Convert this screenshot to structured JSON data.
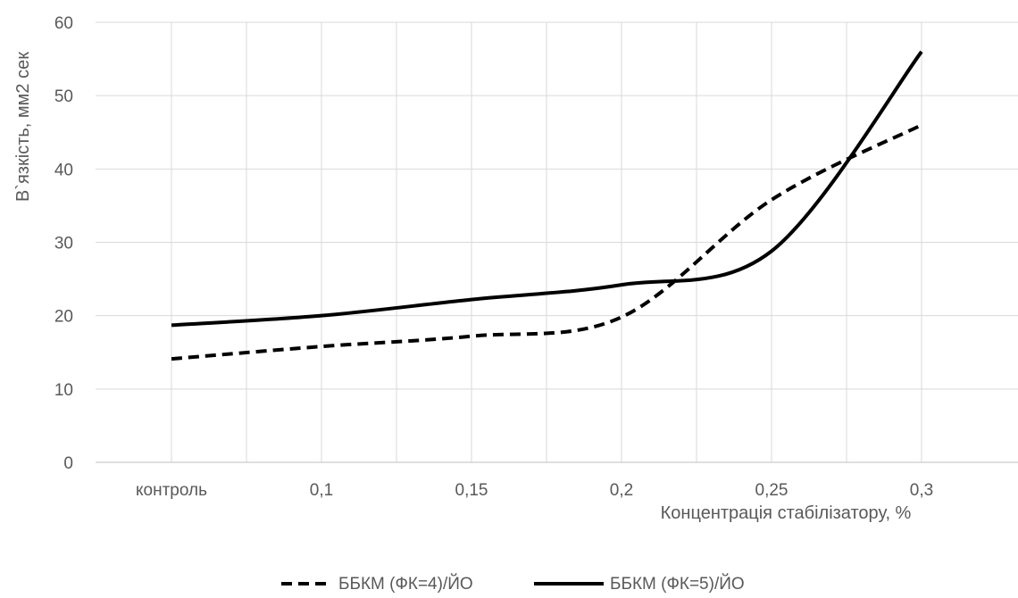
{
  "chart_data": {
    "type": "line",
    "title": "",
    "xlabel": "Концентрація стабілізатору, %",
    "ylabel": "В`язкість, мм2 сек",
    "categories": [
      "контроль",
      "0,1",
      "0,15",
      "0,2",
      "0,25",
      "0,3"
    ],
    "ylim": [
      0,
      60
    ],
    "yticks": [
      0,
      10,
      20,
      30,
      40,
      50,
      60
    ],
    "grid": true,
    "smooth": true,
    "legend_position": "bottom",
    "series": [
      {
        "name": "ББКМ (ФК=4)/ЙО",
        "values": [
          14.1,
          15.8,
          17.2,
          19.8,
          35.8,
          46.0
        ],
        "style": "dashed",
        "color": "#000000"
      },
      {
        "name": "ББКМ (ФК=5)/ЙО",
        "values": [
          18.7,
          20.0,
          22.2,
          24.2,
          28.8,
          56.0
        ],
        "style": "solid",
        "color": "#000000"
      }
    ]
  }
}
